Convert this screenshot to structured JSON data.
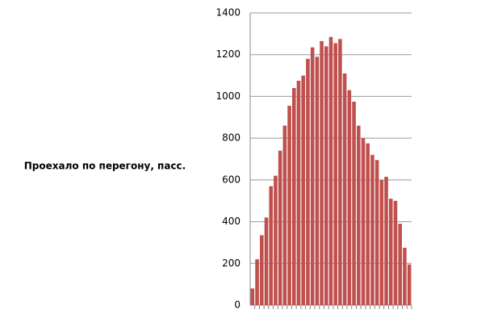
{
  "chart_data": {
    "type": "bar",
    "ylabel": "Проехало по перегону, пасс.",
    "categories": [
      null,
      null,
      null,
      null,
      null,
      null,
      null,
      null,
      null,
      null,
      null,
      null,
      null,
      null,
      null,
      null,
      null,
      null,
      null,
      null,
      null,
      null,
      null,
      null,
      null,
      null,
      null,
      null,
      null,
      null,
      null,
      null,
      null,
      null,
      null
    ],
    "values": [
      80,
      220,
      335,
      420,
      570,
      620,
      740,
      860,
      955,
      1040,
      1075,
      1100,
      1180,
      1235,
      1190,
      1265,
      1240,
      1285,
      1255,
      1275,
      1110,
      1030,
      975,
      860,
      800,
      775,
      720,
      695,
      600,
      615,
      510,
      500,
      390,
      275,
      195
    ],
    "color": "#c0504d",
    "ylim": [
      0,
      1400
    ],
    "yticks": [
      0,
      200,
      400,
      600,
      800,
      1000,
      1200,
      1400
    ],
    "grid": true
  }
}
